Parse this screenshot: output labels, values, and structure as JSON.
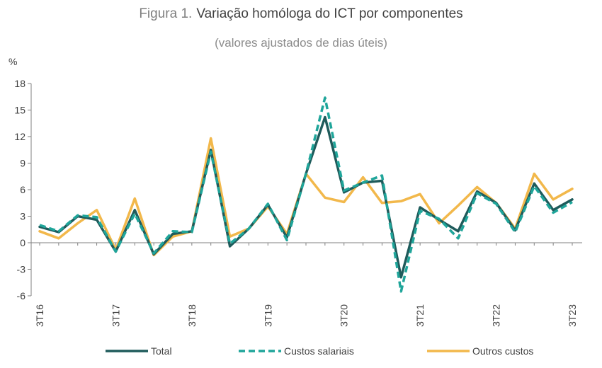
{
  "chart_data": {
    "type": "line",
    "title_prefix": "Figura 1.",
    "title": "Variação homóloga do ICT por componentes",
    "subtitle": "(valores ajustados de dias úteis)",
    "ylabel": "%",
    "xlabel": "",
    "ylim": [
      -6,
      18
    ],
    "yticks": [
      18,
      15,
      12,
      9,
      6,
      3,
      0,
      -3,
      -6
    ],
    "ytick_labels": [
      "18",
      "15",
      "12",
      "9",
      "6",
      "3",
      "0",
      "-3",
      "-6"
    ],
    "grid": false,
    "legend_position": "bottom",
    "x": [
      "3T16",
      "4T16",
      "1T17",
      "2T17",
      "3T17",
      "4T17",
      "1T18",
      "2T18",
      "3T18",
      "4T18",
      "1T19",
      "2T19",
      "3T19",
      "4T19",
      "1T20",
      "2T20",
      "3T20",
      "4T20",
      "1T21",
      "2T21",
      "3T21",
      "4T21",
      "1T22",
      "2T22",
      "3T22",
      "4T22",
      "1T23",
      "2T23",
      "3T23"
    ],
    "xtick_labels": [
      {
        "index": 0,
        "label": "3T16"
      },
      {
        "index": 4,
        "label": "3T17"
      },
      {
        "index": 8,
        "label": "3T18"
      },
      {
        "index": 12,
        "label": "3T19"
      },
      {
        "index": 16,
        "label": "3T20"
      },
      {
        "index": 20,
        "label": "3T21"
      },
      {
        "index": 24,
        "label": "3T22"
      },
      {
        "index": 28,
        "label": "3T23"
      }
    ],
    "series": [
      {
        "name": "Outros custos",
        "color": "#f2b84b",
        "style": "solid",
        "values": [
          1.3,
          0.5,
          2.2,
          3.7,
          -0.8,
          5.0,
          -1.4,
          0.7,
          1.3,
          11.8,
          0.7,
          1.6,
          4.1,
          1.0,
          7.8,
          5.1,
          4.6,
          7.4,
          4.5,
          4.7,
          5.5,
          2.2,
          4.2,
          6.3,
          4.5,
          1.6,
          7.8,
          4.9,
          6.1
        ]
      },
      {
        "name": "Total",
        "color": "#1f5b5b",
        "style": "solid",
        "values": [
          1.8,
          1.2,
          3.0,
          2.6,
          -1.0,
          3.7,
          -1.3,
          1.0,
          1.3,
          10.5,
          -0.4,
          1.6,
          4.3,
          0.6,
          7.8,
          14.2,
          5.7,
          6.8,
          7.0,
          -3.9,
          4.0,
          2.6,
          1.3,
          5.8,
          4.5,
          1.4,
          6.7,
          3.7,
          4.9
        ]
      },
      {
        "name": "Custos salariais",
        "color": "#1fa59a",
        "style": "dashed",
        "values": [
          2.0,
          1.3,
          3.1,
          2.9,
          -1.0,
          3.3,
          -1.2,
          1.3,
          1.2,
          10.3,
          -0.1,
          1.6,
          4.4,
          0.3,
          7.8,
          16.4,
          5.9,
          6.8,
          7.6,
          -5.5,
          3.6,
          2.7,
          0.5,
          5.6,
          4.4,
          1.2,
          6.4,
          3.4,
          4.6
        ]
      }
    ],
    "legend": [
      {
        "label": "Total",
        "color": "#1f5b5b",
        "style": "solid"
      },
      {
        "label": "Custos salariais",
        "color": "#1fa59a",
        "style": "dashed"
      },
      {
        "label": "Outros custos",
        "color": "#f2b84b",
        "style": "solid"
      }
    ]
  }
}
